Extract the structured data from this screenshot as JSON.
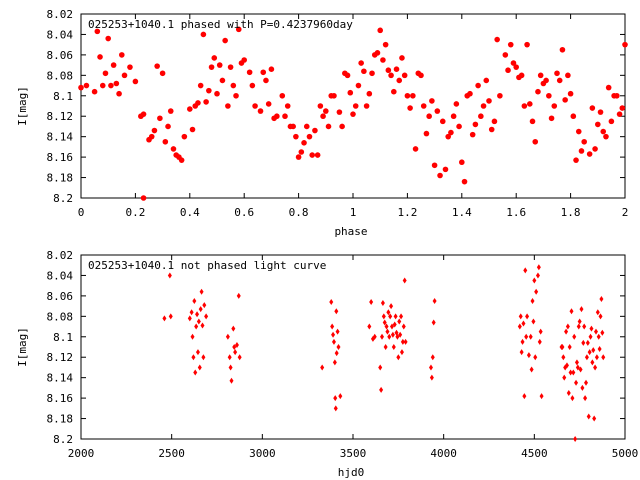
{
  "chart_data": [
    {
      "type": "scatter",
      "title": "025253+1040.1 phased with P=0.4237960day",
      "xlabel": "phase",
      "ylabel": "I[mag]",
      "xlim": [
        0,
        2
      ],
      "ylim": [
        8.2,
        8.02
      ],
      "y_inverted": true,
      "xticks": [
        "0",
        "0.2",
        "0.4",
        "0.6",
        "0.8",
        "1",
        "1.2",
        "1.4",
        "1.6",
        "1.8",
        "2"
      ],
      "yticks": [
        "8.02",
        "8.04",
        "8.06",
        "8.08",
        "8.1",
        "8.12",
        "8.14",
        "8.16",
        "8.18",
        "8.2"
      ],
      "grid": false,
      "marker": "filled-circle",
      "color": "#ff0000",
      "points": [
        [
          0.0,
          8.092
        ],
        [
          0.02,
          8.09
        ],
        [
          0.05,
          8.096
        ],
        [
          0.06,
          8.037
        ],
        [
          0.07,
          8.062
        ],
        [
          0.08,
          8.09
        ],
        [
          0.09,
          8.078
        ],
        [
          0.1,
          8.044
        ],
        [
          0.11,
          8.09
        ],
        [
          0.12,
          8.07
        ],
        [
          0.13,
          8.088
        ],
        [
          0.14,
          8.098
        ],
        [
          0.15,
          8.06
        ],
        [
          0.16,
          8.08
        ],
        [
          0.18,
          8.072
        ],
        [
          0.2,
          8.086
        ],
        [
          0.22,
          8.12
        ],
        [
          0.23,
          8.118
        ],
        [
          0.23,
          8.2
        ],
        [
          0.25,
          8.143
        ],
        [
          0.26,
          8.14
        ],
        [
          0.27,
          8.134
        ],
        [
          0.28,
          8.071
        ],
        [
          0.29,
          8.122
        ],
        [
          0.3,
          8.078
        ],
        [
          0.31,
          8.145
        ],
        [
          0.32,
          8.13
        ],
        [
          0.33,
          8.115
        ],
        [
          0.34,
          8.152
        ],
        [
          0.35,
          8.158
        ],
        [
          0.36,
          8.16
        ],
        [
          0.37,
          8.163
        ],
        [
          0.38,
          8.14
        ],
        [
          0.4,
          8.113
        ],
        [
          0.41,
          8.133
        ],
        [
          0.42,
          8.11
        ],
        [
          0.43,
          8.107
        ],
        [
          0.44,
          8.09
        ],
        [
          0.45,
          8.04
        ],
        [
          0.46,
          8.106
        ],
        [
          0.47,
          8.095
        ],
        [
          0.48,
          8.072
        ],
        [
          0.49,
          8.063
        ],
        [
          0.5,
          8.098
        ],
        [
          0.51,
          8.07
        ],
        [
          0.52,
          8.085
        ],
        [
          0.53,
          8.046
        ],
        [
          0.54,
          8.11
        ],
        [
          0.55,
          8.072
        ],
        [
          0.56,
          8.09
        ],
        [
          0.57,
          8.1
        ],
        [
          0.58,
          8.035
        ],
        [
          0.59,
          8.068
        ],
        [
          0.6,
          8.065
        ],
        [
          0.62,
          8.077
        ],
        [
          0.63,
          8.09
        ],
        [
          0.64,
          8.11
        ],
        [
          0.66,
          8.115
        ],
        [
          0.67,
          8.077
        ],
        [
          0.68,
          8.085
        ],
        [
          0.69,
          8.108
        ],
        [
          0.7,
          8.074
        ],
        [
          0.71,
          8.122
        ],
        [
          0.72,
          8.12
        ],
        [
          0.74,
          8.1
        ],
        [
          0.75,
          8.12
        ],
        [
          0.76,
          8.11
        ],
        [
          0.77,
          8.13
        ],
        [
          0.78,
          8.13
        ],
        [
          0.79,
          8.14
        ],
        [
          0.8,
          8.16
        ],
        [
          0.81,
          8.155
        ],
        [
          0.82,
          8.146
        ],
        [
          0.83,
          8.13
        ],
        [
          0.84,
          8.14
        ],
        [
          0.85,
          8.158
        ],
        [
          0.86,
          8.134
        ],
        [
          0.87,
          8.158
        ],
        [
          0.88,
          8.11
        ],
        [
          0.89,
          8.12
        ],
        [
          0.9,
          8.115
        ],
        [
          0.91,
          8.13
        ],
        [
          0.92,
          8.1
        ],
        [
          0.93,
          8.1
        ],
        [
          0.95,
          8.116
        ],
        [
          0.96,
          8.13
        ],
        [
          0.97,
          8.078
        ],
        [
          0.98,
          8.08
        ],
        [
          0.99,
          8.097
        ],
        [
          1.0,
          8.118
        ],
        [
          1.01,
          8.11
        ],
        [
          1.02,
          8.09
        ],
        [
          1.03,
          8.068
        ],
        [
          1.04,
          8.076
        ],
        [
          1.05,
          8.11
        ],
        [
          1.06,
          8.098
        ],
        [
          1.07,
          8.078
        ],
        [
          1.08,
          8.06
        ],
        [
          1.09,
          8.058
        ],
        [
          1.1,
          8.036
        ],
        [
          1.11,
          8.065
        ],
        [
          1.12,
          8.05
        ],
        [
          1.13,
          8.075
        ],
        [
          1.14,
          8.08
        ],
        [
          1.15,
          8.096
        ],
        [
          1.16,
          8.074
        ],
        [
          1.17,
          8.085
        ],
        [
          1.18,
          8.063
        ],
        [
          1.19,
          8.08
        ],
        [
          1.2,
          8.1
        ],
        [
          1.21,
          8.112
        ],
        [
          1.22,
          8.1
        ],
        [
          1.23,
          8.152
        ],
        [
          1.24,
          8.078
        ],
        [
          1.25,
          8.08
        ],
        [
          1.26,
          8.11
        ],
        [
          1.27,
          8.137
        ],
        [
          1.28,
          8.12
        ],
        [
          1.29,
          8.105
        ],
        [
          1.3,
          8.168
        ],
        [
          1.31,
          8.115
        ],
        [
          1.32,
          8.178
        ],
        [
          1.33,
          8.125
        ],
        [
          1.34,
          8.172
        ],
        [
          1.35,
          8.14
        ],
        [
          1.36,
          8.136
        ],
        [
          1.37,
          8.12
        ],
        [
          1.38,
          8.108
        ],
        [
          1.39,
          8.13
        ],
        [
          1.4,
          8.165
        ],
        [
          1.41,
          8.184
        ],
        [
          1.42,
          8.1
        ],
        [
          1.43,
          8.098
        ],
        [
          1.44,
          8.138
        ],
        [
          1.45,
          8.128
        ],
        [
          1.46,
          8.09
        ],
        [
          1.47,
          8.12
        ],
        [
          1.48,
          8.11
        ],
        [
          1.49,
          8.085
        ],
        [
          1.5,
          8.105
        ],
        [
          1.51,
          8.133
        ],
        [
          1.52,
          8.125
        ],
        [
          1.53,
          8.045
        ],
        [
          1.54,
          8.1
        ],
        [
          1.56,
          8.06
        ],
        [
          1.57,
          8.075
        ],
        [
          1.58,
          8.05
        ],
        [
          1.59,
          8.068
        ],
        [
          1.6,
          8.072
        ],
        [
          1.61,
          8.082
        ],
        [
          1.62,
          8.08
        ],
        [
          1.63,
          8.11
        ],
        [
          1.64,
          8.05
        ],
        [
          1.65,
          8.108
        ],
        [
          1.66,
          8.125
        ],
        [
          1.67,
          8.145
        ],
        [
          1.68,
          8.096
        ],
        [
          1.69,
          8.08
        ],
        [
          1.7,
          8.088
        ],
        [
          1.71,
          8.085
        ],
        [
          1.72,
          8.1
        ],
        [
          1.73,
          8.122
        ],
        [
          1.74,
          8.11
        ],
        [
          1.75,
          8.078
        ],
        [
          1.76,
          8.085
        ],
        [
          1.77,
          8.055
        ],
        [
          1.78,
          8.104
        ],
        [
          1.79,
          8.08
        ],
        [
          1.8,
          8.098
        ],
        [
          1.81,
          8.12
        ],
        [
          1.82,
          8.163
        ],
        [
          1.83,
          8.135
        ],
        [
          1.84,
          8.154
        ],
        [
          1.85,
          8.145
        ],
        [
          1.87,
          8.157
        ],
        [
          1.88,
          8.112
        ],
        [
          1.89,
          8.152
        ],
        [
          1.9,
          8.128
        ],
        [
          1.91,
          8.116
        ],
        [
          1.92,
          8.135
        ],
        [
          1.93,
          8.14
        ],
        [
          1.94,
          8.092
        ],
        [
          1.95,
          8.125
        ],
        [
          1.96,
          8.1
        ],
        [
          1.97,
          8.1
        ],
        [
          1.98,
          8.118
        ],
        [
          1.99,
          8.112
        ],
        [
          2.0,
          8.05
        ]
      ]
    },
    {
      "type": "scatter",
      "title": "025253+1040.1 not phased light curve",
      "xlabel": "hjd0",
      "ylabel": "I[mag]",
      "xlim": [
        2000,
        5000
      ],
      "ylim": [
        8.2,
        8.02
      ],
      "y_inverted": true,
      "xticks": [
        "2000",
        "2500",
        "3000",
        "3500",
        "4000",
        "4500",
        "5000"
      ],
      "yticks": [
        "8.02",
        "8.04",
        "8.06",
        "8.08",
        "8.1",
        "8.12",
        "8.14",
        "8.16",
        "8.18",
        "8.2"
      ],
      "grid": false,
      "marker": "diamond",
      "color": "#ff0000",
      "points": [
        [
          2460,
          8.082
        ],
        [
          2490,
          8.04
        ],
        [
          2495,
          8.08
        ],
        [
          2600,
          8.082
        ],
        [
          2610,
          8.076
        ],
        [
          2615,
          8.1
        ],
        [
          2620,
          8.12
        ],
        [
          2625,
          8.065
        ],
        [
          2630,
          8.135
        ],
        [
          2635,
          8.09
        ],
        [
          2640,
          8.078
        ],
        [
          2645,
          8.115
        ],
        [
          2650,
          8.085
        ],
        [
          2655,
          8.13
        ],
        [
          2660,
          8.073
        ],
        [
          2665,
          8.056
        ],
        [
          2670,
          8.089
        ],
        [
          2675,
          8.12
        ],
        [
          2680,
          8.069
        ],
        [
          2690,
          8.08
        ],
        [
          2810,
          8.1
        ],
        [
          2820,
          8.12
        ],
        [
          2825,
          8.13
        ],
        [
          2830,
          8.143
        ],
        [
          2840,
          8.092
        ],
        [
          2845,
          8.11
        ],
        [
          2850,
          8.115
        ],
        [
          2860,
          8.108
        ],
        [
          2870,
          8.06
        ],
        [
          2875,
          8.12
        ],
        [
          3330,
          8.13
        ],
        [
          3380,
          8.066
        ],
        [
          3385,
          8.09
        ],
        [
          3390,
          8.098
        ],
        [
          3395,
          8.105
        ],
        [
          3400,
          8.125
        ],
        [
          3402,
          8.16
        ],
        [
          3405,
          8.17
        ],
        [
          3408,
          8.075
        ],
        [
          3410,
          8.116
        ],
        [
          3415,
          8.095
        ],
        [
          3420,
          8.11
        ],
        [
          3430,
          8.158
        ],
        [
          3590,
          8.09
        ],
        [
          3600,
          8.066
        ],
        [
          3610,
          8.102
        ],
        [
          3620,
          8.1
        ],
        [
          3650,
          8.13
        ],
        [
          3655,
          8.152
        ],
        [
          3660,
          8.1
        ],
        [
          3665,
          8.067
        ],
        [
          3670,
          8.08
        ],
        [
          3675,
          8.086
        ],
        [
          3680,
          8.11
        ],
        [
          3685,
          8.09
        ],
        [
          3690,
          8.095
        ],
        [
          3695,
          8.076
        ],
        [
          3700,
          8.1
        ],
        [
          3705,
          8.08
        ],
        [
          3710,
          8.07
        ],
        [
          3715,
          8.09
        ],
        [
          3720,
          8.098
        ],
        [
          3725,
          8.11
        ],
        [
          3730,
          8.088
        ],
        [
          3735,
          8.08
        ],
        [
          3740,
          8.096
        ],
        [
          3745,
          8.1
        ],
        [
          3750,
          8.12
        ],
        [
          3755,
          8.085
        ],
        [
          3760,
          8.098
        ],
        [
          3765,
          8.08
        ],
        [
          3770,
          8.115
        ],
        [
          3775,
          8.105
        ],
        [
          3780,
          8.09
        ],
        [
          3785,
          8.045
        ],
        [
          3790,
          8.105
        ],
        [
          3930,
          8.13
        ],
        [
          3935,
          8.14
        ],
        [
          3940,
          8.12
        ],
        [
          3945,
          8.086
        ],
        [
          3950,
          8.065
        ],
        [
          4420,
          8.09
        ],
        [
          4425,
          8.08
        ],
        [
          4430,
          8.115
        ],
        [
          4435,
          8.105
        ],
        [
          4440,
          8.087
        ],
        [
          4445,
          8.158
        ],
        [
          4450,
          8.035
        ],
        [
          4455,
          8.1
        ],
        [
          4460,
          8.08
        ],
        [
          4470,
          8.118
        ],
        [
          4480,
          8.1
        ],
        [
          4485,
          8.132
        ],
        [
          4490,
          8.065
        ],
        [
          4495,
          8.085
        ],
        [
          4500,
          8.045
        ],
        [
          4505,
          8.12
        ],
        [
          4510,
          8.056
        ],
        [
          4520,
          8.04
        ],
        [
          4525,
          8.032
        ],
        [
          4530,
          8.105
        ],
        [
          4535,
          8.095
        ],
        [
          4540,
          8.158
        ],
        [
          4650,
          8.11
        ],
        [
          4655,
          8.11
        ],
        [
          4660,
          8.12
        ],
        [
          4665,
          8.14
        ],
        [
          4670,
          8.13
        ],
        [
          4675,
          8.095
        ],
        [
          4680,
          8.128
        ],
        [
          4685,
          8.09
        ],
        [
          4690,
          8.155
        ],
        [
          4695,
          8.11
        ],
        [
          4700,
          8.135
        ],
        [
          4705,
          8.075
        ],
        [
          4710,
          8.16
        ],
        [
          4715,
          8.135
        ],
        [
          4720,
          8.1
        ],
        [
          4725,
          8.2
        ],
        [
          4730,
          8.145
        ],
        [
          4735,
          8.125
        ],
        [
          4740,
          8.13
        ],
        [
          4745,
          8.09
        ],
        [
          4750,
          8.085
        ],
        [
          4755,
          8.132
        ],
        [
          4760,
          8.073
        ],
        [
          4765,
          8.15
        ],
        [
          4770,
          8.106
        ],
        [
          4775,
          8.09
        ],
        [
          4780,
          8.16
        ],
        [
          4785,
          8.145
        ],
        [
          4790,
          8.12
        ],
        [
          4795,
          8.106
        ],
        [
          4800,
          8.178
        ],
        [
          4805,
          8.115
        ],
        [
          4810,
          8.1
        ],
        [
          4815,
          8.092
        ],
        [
          4820,
          8.125
        ],
        [
          4825,
          8.113
        ],
        [
          4830,
          8.18
        ],
        [
          4835,
          8.13
        ],
        [
          4840,
          8.095
        ],
        [
          4845,
          8.12
        ],
        [
          4850,
          8.076
        ],
        [
          4855,
          8.1
        ],
        [
          4860,
          8.112
        ],
        [
          4865,
          8.08
        ],
        [
          4870,
          8.063
        ],
        [
          4875,
          8.096
        ],
        [
          4880,
          8.12
        ]
      ]
    }
  ]
}
